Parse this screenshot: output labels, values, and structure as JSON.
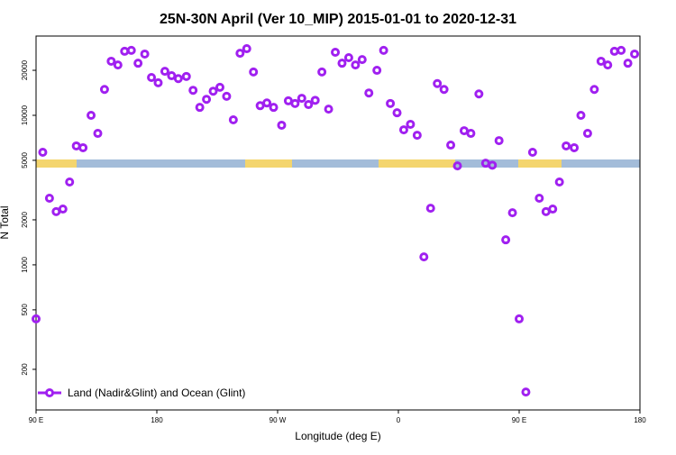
{
  "chart_data": {
    "type": "scatter",
    "title": "25N-30N April (Ver 10_MIP)   2015-01-01 to 2020-12-31",
    "xlabel": "Longitude (deg E)",
    "ylabel": "N Total",
    "xlim": [
      90,
      540
    ],
    "ylim": [
      107,
      33900
    ],
    "log_y": true,
    "xticks": [
      {
        "value": 90,
        "label": "90 E"
      },
      {
        "value": 180,
        "label": "180"
      },
      {
        "value": 270,
        "label": "90 W"
      },
      {
        "value": 360,
        "label": "0"
      },
      {
        "value": 450,
        "label": "90 E"
      },
      {
        "value": 540,
        "label": "180"
      }
    ],
    "yticks": [
      200,
      500,
      1000,
      2000,
      5000,
      10000,
      20000
    ],
    "legend_position": "lower left",
    "series": [
      {
        "name": "Land (Nadir&Glint) and Ocean (Glint)",
        "color": "#a020f0",
        "x": [
          90,
          95,
          100,
          105,
          110,
          115,
          120,
          125,
          131,
          136,
          141,
          146,
          151,
          156,
          161,
          166,
          171,
          176,
          181,
          186,
          191,
          196,
          202,
          207,
          212,
          217,
          222,
          227,
          232,
          237,
          242,
          247,
          252,
          257,
          262,
          267,
          273,
          278,
          283,
          288,
          293,
          298,
          303,
          308,
          313,
          318,
          323,
          328,
          333,
          338,
          344,
          349,
          354,
          359,
          364,
          369,
          374,
          379,
          384,
          389,
          394,
          399,
          404,
          409,
          414,
          420,
          425,
          430,
          435,
          440,
          445,
          450,
          455,
          460,
          465,
          470,
          475,
          480,
          485,
          491,
          496,
          501,
          506,
          511,
          516,
          521,
          526,
          531,
          536
        ],
        "values": [
          435,
          5660,
          2790,
          2270,
          2360,
          3580,
          6240,
          6070,
          10000,
          7570,
          14900,
          23000,
          21700,
          26800,
          27200,
          22300,
          25700,
          17900,
          16500,
          19700,
          18400,
          17600,
          18200,
          14700,
          11300,
          12800,
          14500,
          15400,
          13400,
          9330,
          26000,
          27900,
          19500,
          11600,
          12100,
          11300,
          8590,
          12500,
          12000,
          13000,
          11800,
          12600,
          19500,
          11000,
          26400,
          22300,
          24300,
          21700,
          23600,
          14100,
          20000,
          27200,
          12000,
          10400,
          8000,
          8710,
          7360,
          1130,
          2390,
          16300,
          14900,
          6320,
          4590,
          7890,
          7570,
          13900,
          4780,
          4640,
          6770,
          1470,
          2230,
          435,
          141,
          5660,
          2790,
          2270,
          2360,
          3580,
          6240,
          6070,
          10000,
          7570,
          14900,
          23000,
          21700,
          26800,
          27200,
          22300,
          25700
        ]
      }
    ]
  }
}
